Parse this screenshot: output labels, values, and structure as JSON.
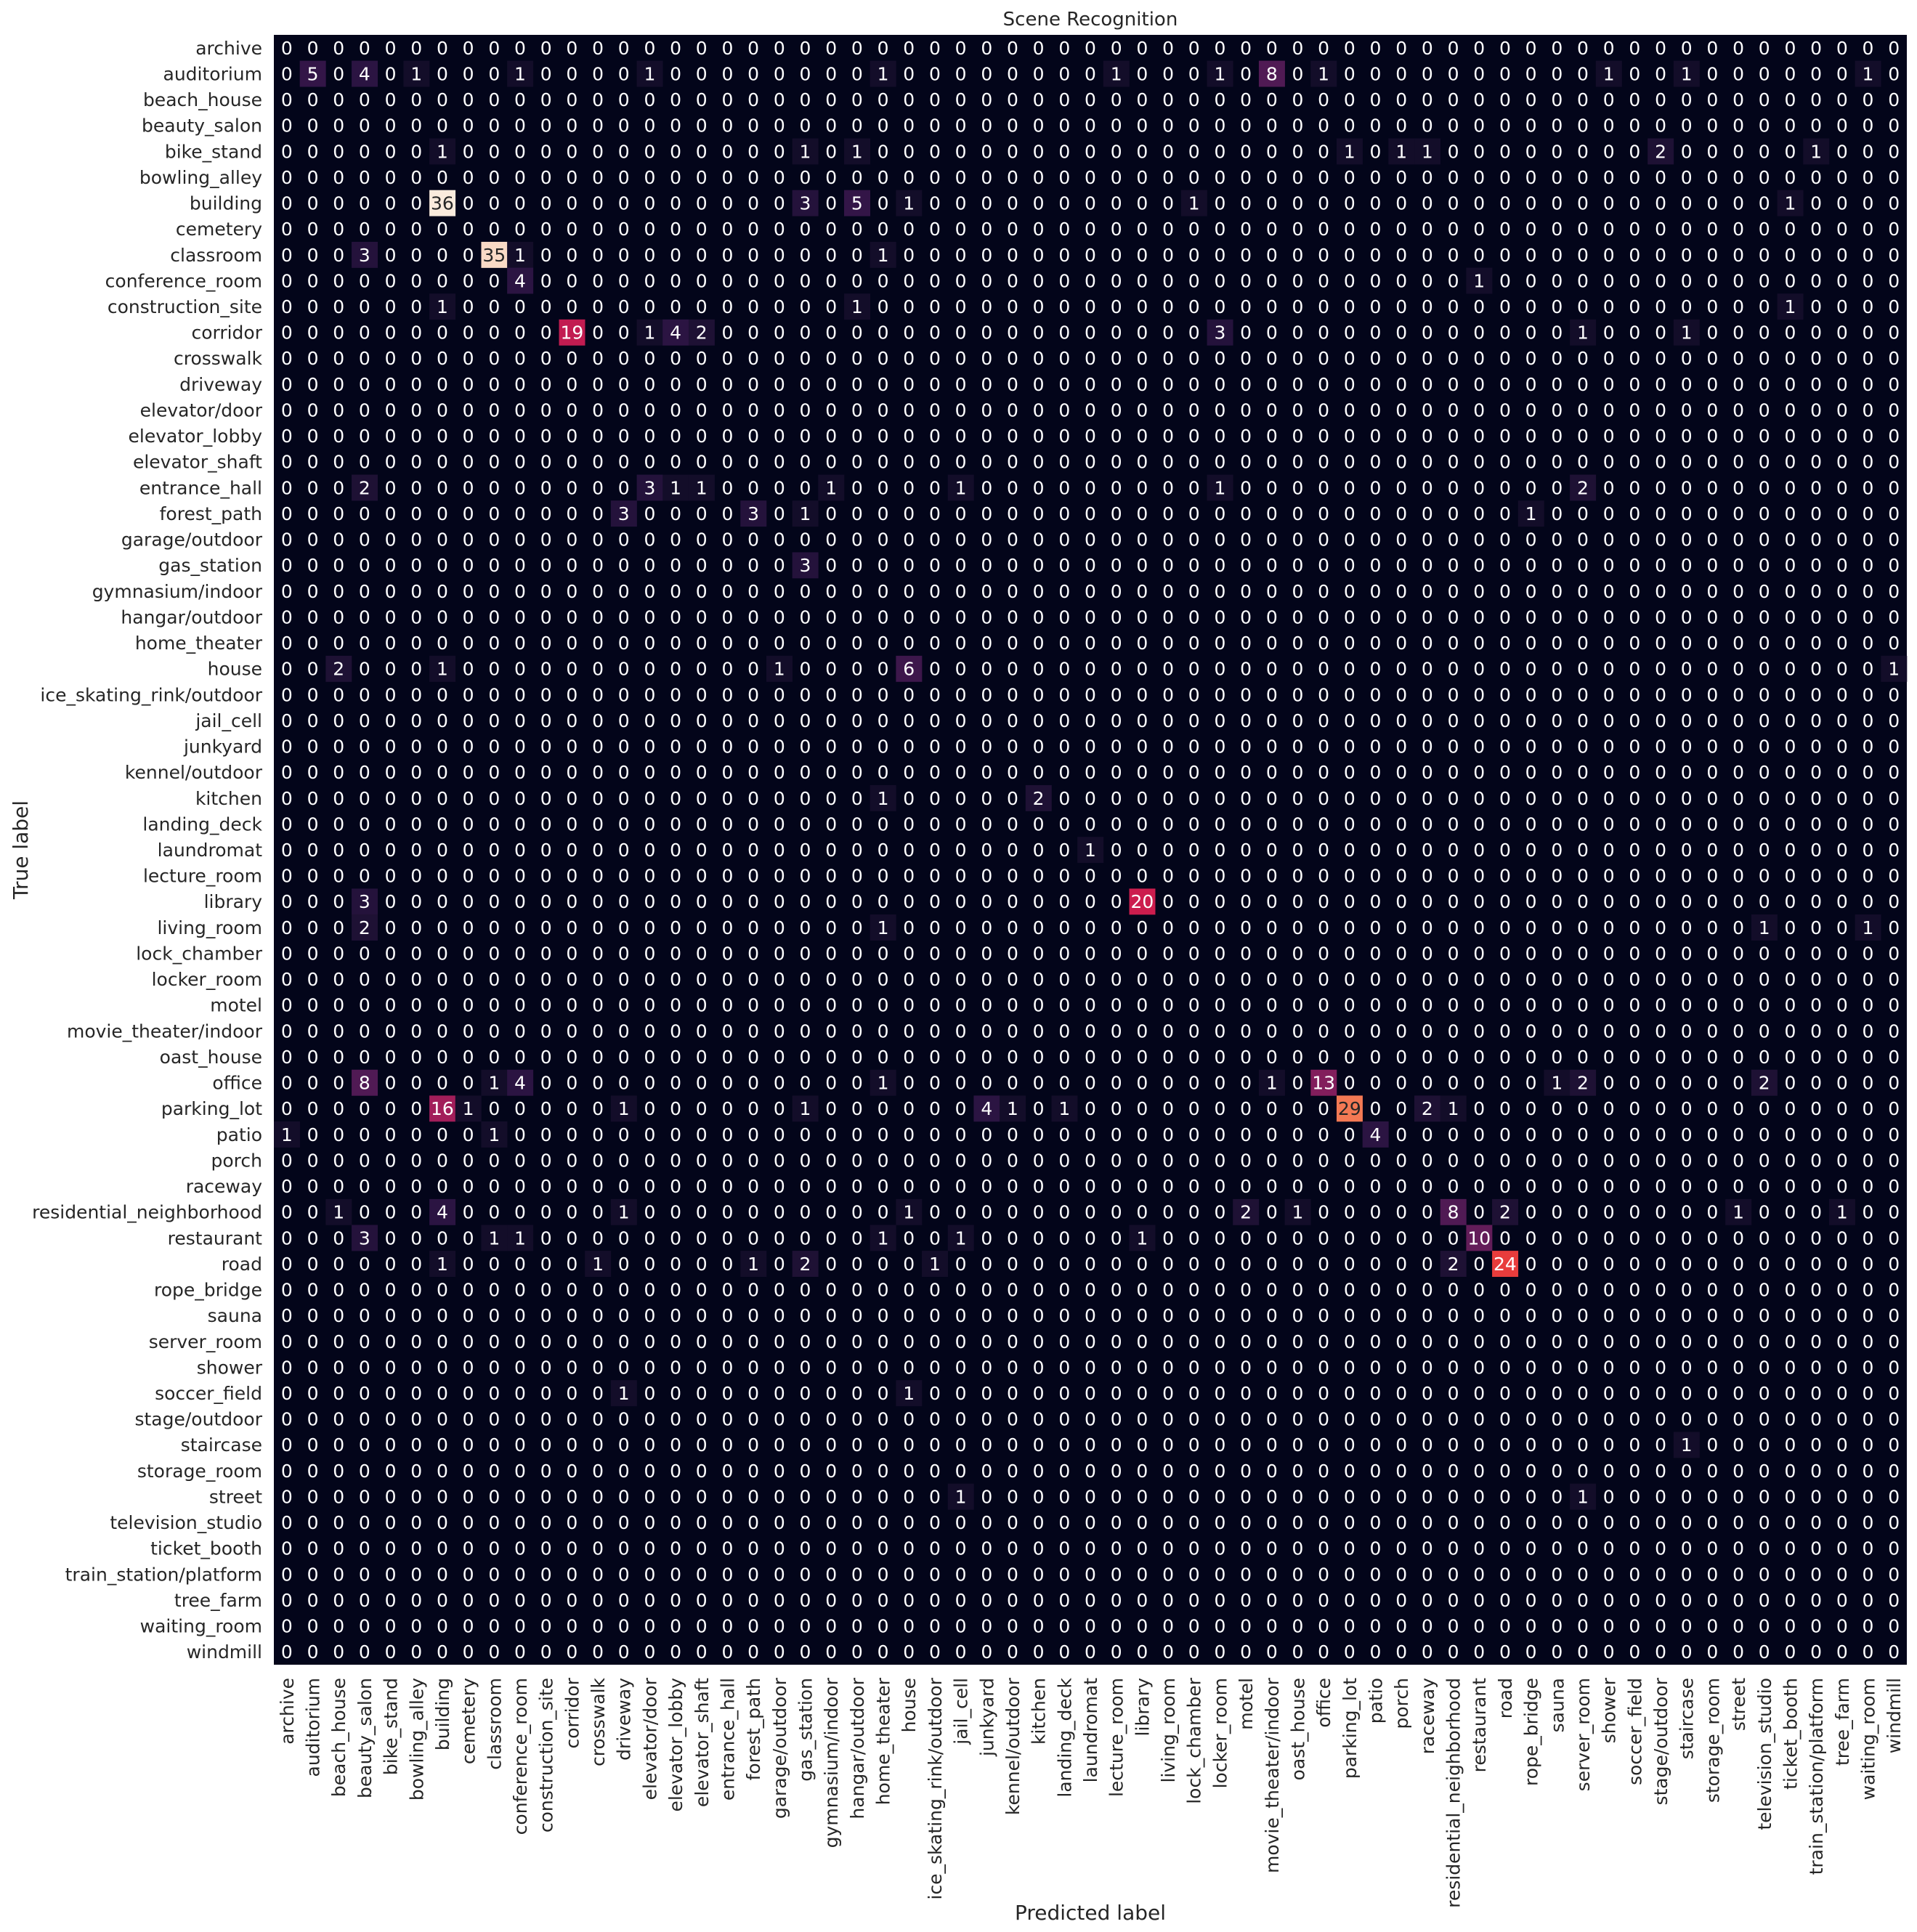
{
  "chart_data": {
    "type": "heatmap",
    "title": "Scene Recognition",
    "xlabel": "Predicted label",
    "ylabel": "True label",
    "labels": [
      "archive",
      "auditorium",
      "beach_house",
      "beauty_salon",
      "bike_stand",
      "bowling_alley",
      "building",
      "cemetery",
      "classroom",
      "conference_room",
      "construction_site",
      "corridor",
      "crosswalk",
      "driveway",
      "elevator/door",
      "elevator_lobby",
      "elevator_shaft",
      "entrance_hall",
      "forest_path",
      "garage/outdoor",
      "gas_station",
      "gymnasium/indoor",
      "hangar/outdoor",
      "home_theater",
      "house",
      "ice_skating_rink/outdoor",
      "jail_cell",
      "junkyard",
      "kennel/outdoor",
      "kitchen",
      "landing_deck",
      "laundromat",
      "lecture_room",
      "library",
      "living_room",
      "lock_chamber",
      "locker_room",
      "motel",
      "movie_theater/indoor",
      "oast_house",
      "office",
      "parking_lot",
      "patio",
      "porch",
      "raceway",
      "residential_neighborhood",
      "restaurant",
      "road",
      "rope_bridge",
      "sauna",
      "server_room",
      "shower",
      "soccer_field",
      "stage/outdoor",
      "staircase",
      "storage_room",
      "street",
      "television_studio",
      "ticket_booth",
      "train_station/platform",
      "tree_farm",
      "waiting_room",
      "windmill"
    ],
    "nonzero": [
      [
        1,
        1,
        5
      ],
      [
        1,
        3,
        4
      ],
      [
        1,
        5,
        1
      ],
      [
        1,
        9,
        1
      ],
      [
        1,
        14,
        1
      ],
      [
        1,
        23,
        1
      ],
      [
        1,
        32,
        1
      ],
      [
        1,
        36,
        1
      ],
      [
        1,
        38,
        8
      ],
      [
        1,
        40,
        1
      ],
      [
        1,
        51,
        1
      ],
      [
        1,
        54,
        1
      ],
      [
        1,
        61,
        1
      ],
      [
        4,
        6,
        1
      ],
      [
        4,
        20,
        1
      ],
      [
        4,
        22,
        1
      ],
      [
        4,
        41,
        1
      ],
      [
        4,
        43,
        1
      ],
      [
        4,
        44,
        1
      ],
      [
        4,
        53,
        2
      ],
      [
        4,
        59,
        1
      ],
      [
        6,
        6,
        36
      ],
      [
        6,
        20,
        3
      ],
      [
        6,
        22,
        5
      ],
      [
        6,
        24,
        1
      ],
      [
        6,
        35,
        1
      ],
      [
        6,
        58,
        1
      ],
      [
        8,
        3,
        3
      ],
      [
        8,
        8,
        35
      ],
      [
        8,
        9,
        1
      ],
      [
        8,
        23,
        1
      ],
      [
        9,
        9,
        4
      ],
      [
        9,
        46,
        1
      ],
      [
        10,
        6,
        1
      ],
      [
        10,
        22,
        1
      ],
      [
        10,
        58,
        1
      ],
      [
        11,
        11,
        19
      ],
      [
        11,
        14,
        1
      ],
      [
        11,
        15,
        4
      ],
      [
        11,
        16,
        2
      ],
      [
        11,
        36,
        3
      ],
      [
        11,
        50,
        1
      ],
      [
        11,
        54,
        1
      ],
      [
        17,
        3,
        2
      ],
      [
        17,
        14,
        3
      ],
      [
        17,
        15,
        1
      ],
      [
        17,
        16,
        1
      ],
      [
        17,
        21,
        1
      ],
      [
        17,
        26,
        1
      ],
      [
        17,
        36,
        1
      ],
      [
        17,
        50,
        2
      ],
      [
        18,
        13,
        3
      ],
      [
        18,
        18,
        3
      ],
      [
        18,
        20,
        1
      ],
      [
        18,
        48,
        1
      ],
      [
        20,
        20,
        3
      ],
      [
        24,
        2,
        2
      ],
      [
        24,
        6,
        1
      ],
      [
        24,
        19,
        1
      ],
      [
        24,
        24,
        6
      ],
      [
        24,
        62,
        1
      ],
      [
        29,
        23,
        1
      ],
      [
        29,
        29,
        2
      ],
      [
        31,
        31,
        1
      ],
      [
        33,
        3,
        3
      ],
      [
        33,
        33,
        20
      ],
      [
        34,
        3,
        2
      ],
      [
        34,
        23,
        1
      ],
      [
        34,
        57,
        1
      ],
      [
        34,
        61,
        1
      ],
      [
        40,
        3,
        8
      ],
      [
        40,
        8,
        1
      ],
      [
        40,
        9,
        4
      ],
      [
        40,
        23,
        1
      ],
      [
        40,
        38,
        1
      ],
      [
        40,
        40,
        13
      ],
      [
        40,
        49,
        1
      ],
      [
        40,
        50,
        2
      ],
      [
        40,
        57,
        2
      ],
      [
        41,
        6,
        16
      ],
      [
        41,
        7,
        1
      ],
      [
        41,
        13,
        1
      ],
      [
        41,
        20,
        1
      ],
      [
        41,
        27,
        4
      ],
      [
        41,
        28,
        1
      ],
      [
        41,
        30,
        1
      ],
      [
        41,
        41,
        29
      ],
      [
        41,
        44,
        2
      ],
      [
        41,
        45,
        1
      ],
      [
        42,
        0,
        1
      ],
      [
        42,
        8,
        1
      ],
      [
        42,
        42,
        4
      ],
      [
        45,
        2,
        1
      ],
      [
        45,
        6,
        4
      ],
      [
        45,
        13,
        1
      ],
      [
        45,
        24,
        1
      ],
      [
        45,
        37,
        2
      ],
      [
        45,
        39,
        1
      ],
      [
        45,
        45,
        8
      ],
      [
        45,
        47,
        2
      ],
      [
        45,
        56,
        1
      ],
      [
        45,
        60,
        1
      ],
      [
        46,
        3,
        3
      ],
      [
        46,
        8,
        1
      ],
      [
        46,
        9,
        1
      ],
      [
        46,
        23,
        1
      ],
      [
        46,
        26,
        1
      ],
      [
        46,
        33,
        1
      ],
      [
        46,
        46,
        10
      ],
      [
        47,
        6,
        1
      ],
      [
        47,
        12,
        1
      ],
      [
        47,
        18,
        1
      ],
      [
        47,
        20,
        2
      ],
      [
        47,
        25,
        1
      ],
      [
        47,
        45,
        2
      ],
      [
        47,
        47,
        24
      ],
      [
        52,
        13,
        1
      ],
      [
        52,
        24,
        1
      ],
      [
        54,
        54,
        1
      ],
      [
        56,
        26,
        1
      ],
      [
        56,
        50,
        1
      ]
    ],
    "vmin": 0,
    "vmax": 36,
    "grid": false,
    "legend": "none"
  }
}
